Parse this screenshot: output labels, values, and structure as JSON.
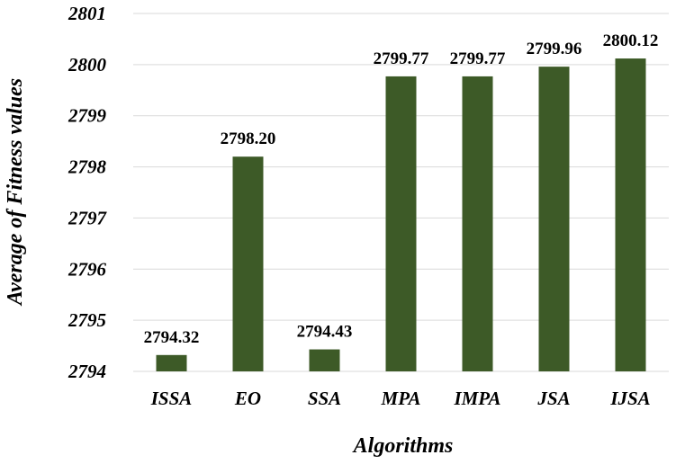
{
  "chart_data": {
    "type": "bar",
    "categories": [
      "ISSA",
      "EO",
      "SSA",
      "MPA",
      "IMPA",
      "JSA",
      "IJSA"
    ],
    "values": [
      2794.32,
      2798.2,
      2794.43,
      2799.77,
      2799.77,
      2799.96,
      2800.12
    ],
    "data_labels": [
      "2794.32",
      "2798.20",
      "2794.43",
      "2799.77",
      "2799.77",
      "2799.96",
      "2800.12"
    ],
    "title": "",
    "xlabel": "Algorithms",
    "ylabel": "Average of Fitness values",
    "ylim": [
      2794,
      2801
    ],
    "yticks": [
      2794,
      2795,
      2796,
      2797,
      2798,
      2799,
      2800,
      2801
    ],
    "bar_color": "#3d5a27",
    "gridline_color": "#d9d9d9",
    "grid": true,
    "legend": "none"
  }
}
